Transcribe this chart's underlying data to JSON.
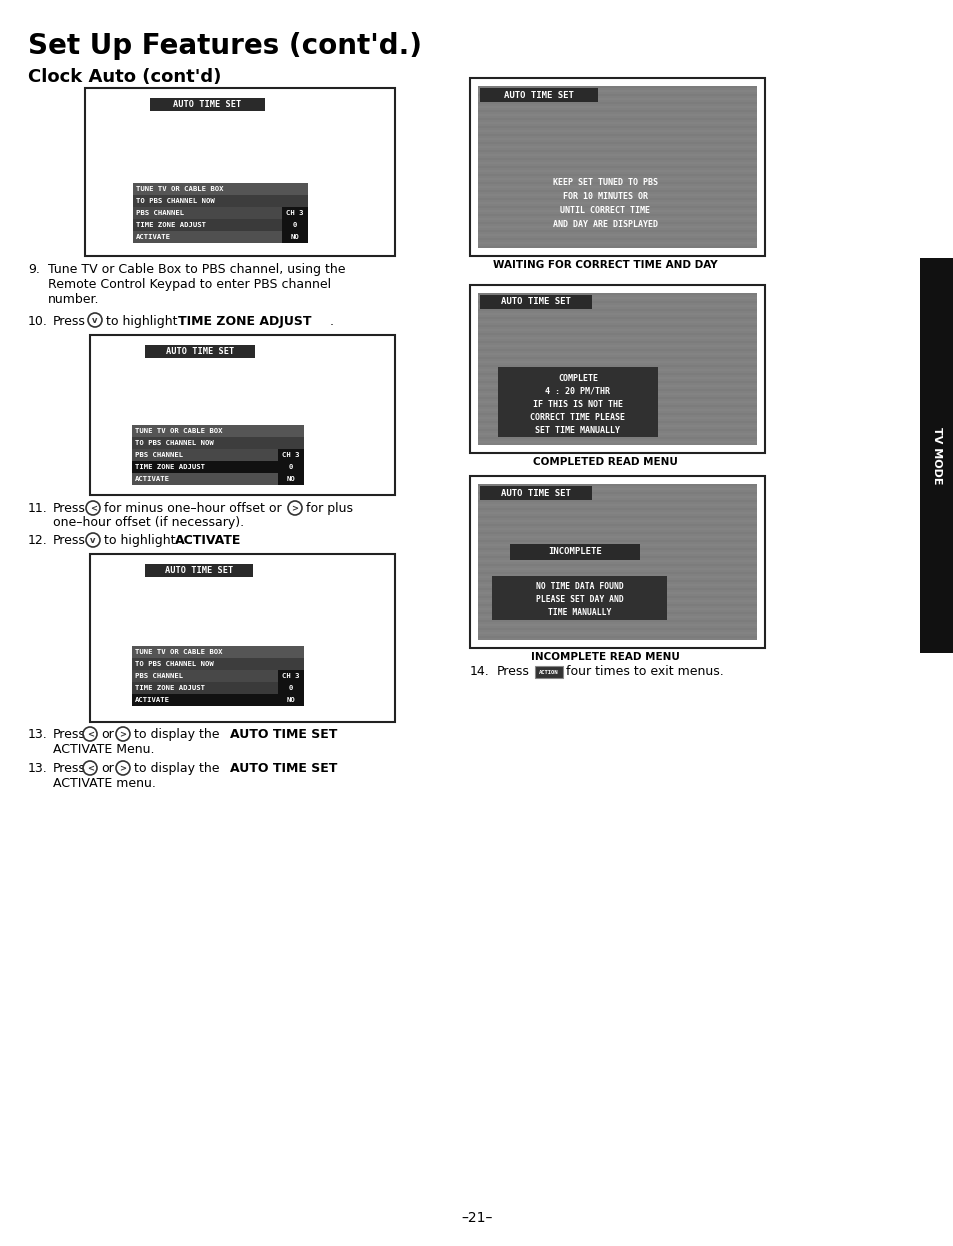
{
  "title": "Set Up Features (cont'd.)",
  "subtitle": "Clock Auto (cont'd)",
  "page_number": "–21–",
  "bg_color": "#ffffff",
  "text_color": "#000000",
  "sidebar_color": "#111111",
  "sidebar_text": "TV MODE",
  "menu_rows": [
    "TUNE TV OR CABLE BOX",
    "TO PBS CHANNEL NOW",
    "PBS CHANNEL",
    "TIME ZONE ADJUST",
    "ACTIVATE"
  ],
  "menu_vals": [
    "",
    "",
    "CH 3",
    "0",
    "NO"
  ]
}
